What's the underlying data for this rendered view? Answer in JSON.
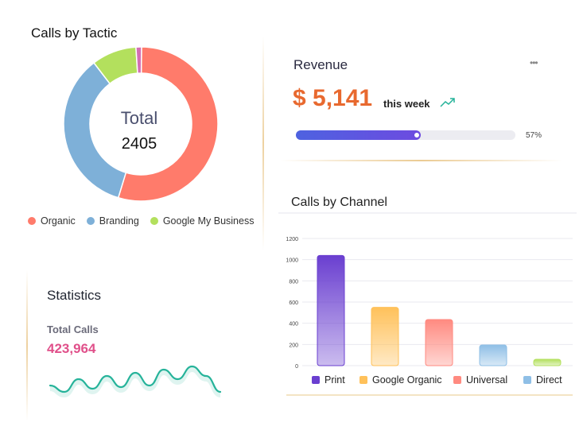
{
  "tactic": {
    "title": "Calls by Tactic",
    "center_label": "Total",
    "center_value": "2405"
  },
  "revenue": {
    "title": "Revenue",
    "amount": "$ 5,141",
    "period": "this week",
    "progress_label": "57%",
    "progress": 57
  },
  "channel": {
    "title": "Calls by Channel"
  },
  "stats": {
    "title": "Statistics",
    "label": "Total Calls",
    "value": "423,964"
  },
  "colors": {
    "organic": "#ff7b6b",
    "branding": "#7eb0d8",
    "gmb": "#b3e05d",
    "other": "#d36fb4",
    "print": "#6a3fd0",
    "google_organic": "#ffc15a",
    "universal": "#ff8a80",
    "direct": "#8fbfe6",
    "accent": "#e8692f",
    "spark": "#26b39a"
  },
  "chart_data": [
    {
      "type": "pie",
      "title": "Calls by Tactic",
      "categories": [
        "Organic",
        "Branding",
        "Google My Business",
        ""
      ],
      "values": [
        1312,
        839,
        226,
        28
      ],
      "legend": [
        "Organic",
        "Branding",
        "Google My Business"
      ],
      "legend_placement": "bottom"
    },
    {
      "type": "bar",
      "title": "Calls by Channel",
      "categories": [
        "Print",
        "Google Organic",
        "Universal",
        "Direct",
        ""
      ],
      "values": [
        1040,
        550,
        435,
        195,
        60
      ],
      "ylim": [
        0,
        1200
      ],
      "yticks": [
        0,
        200,
        400,
        600,
        800,
        1000,
        1200
      ],
      "grid": true,
      "legend": [
        "Print",
        "Google Organic",
        "Universal",
        "Direct"
      ],
      "legend_placement": "bottom"
    },
    {
      "type": "line",
      "title": "",
      "x": [
        0,
        1,
        2,
        3,
        4,
        5,
        6,
        7,
        8,
        9,
        10,
        11,
        12
      ],
      "values": [
        3,
        1,
        5,
        2,
        6,
        2.5,
        7,
        3,
        8,
        5,
        9,
        6,
        1
      ],
      "grid": false
    }
  ]
}
